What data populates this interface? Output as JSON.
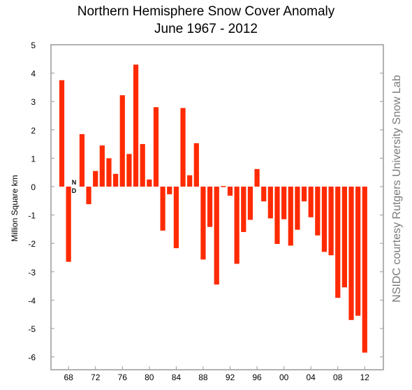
{
  "chart_data": {
    "type": "bar",
    "title": "Northern Hemisphere Snow Cover Anomaly",
    "subtitle": "June 1967 - 2012",
    "xlabel": "",
    "ylabel": "Million Square km",
    "credit": "NSIDC courtesy Rutgers University Snow Lab",
    "no_data_label_top": "N",
    "no_data_label_bottom": "D",
    "ylim": [
      -6.25,
      5
    ],
    "yticks": [
      5,
      4,
      3,
      2,
      1,
      0,
      -1,
      -2,
      -3,
      -4,
      -5,
      -6
    ],
    "xticks": [
      "68",
      "72",
      "76",
      "80",
      "84",
      "88",
      "92",
      "96",
      "00",
      "04",
      "08",
      "12"
    ],
    "grid": false,
    "bar_color": "#ff2a00",
    "series": [
      {
        "x": [
          1967,
          1968,
          1969,
          1970,
          1971,
          1972,
          1973,
          1974,
          1975,
          1976,
          1977,
          1978,
          1979,
          1980,
          1981,
          1982,
          1983,
          1984,
          1985,
          1986,
          1987,
          1988,
          1989,
          1990,
          1991,
          1992,
          1993,
          1994,
          1995,
          1996,
          1997,
          1998,
          1999,
          2000,
          2001,
          2002,
          2003,
          2004,
          2005,
          2006,
          2007,
          2008,
          2009,
          2010,
          2011,
          2012
        ],
        "values": [
          3.75,
          -2.65,
          null,
          1.85,
          -0.62,
          0.55,
          1.45,
          1.0,
          0.45,
          3.22,
          1.15,
          4.3,
          1.5,
          0.25,
          2.8,
          -1.55,
          -0.27,
          -2.17,
          2.77,
          0.4,
          1.53,
          -2.57,
          -1.42,
          -3.45,
          0.02,
          -0.32,
          -2.72,
          -1.6,
          -1.17,
          0.62,
          -0.52,
          -1.12,
          -2.02,
          -1.15,
          -2.08,
          -1.52,
          -0.52,
          -1.08,
          -1.72,
          -2.3,
          -2.42,
          -3.92,
          -3.55,
          -4.7,
          -4.55,
          -5.85
        ]
      }
    ]
  }
}
